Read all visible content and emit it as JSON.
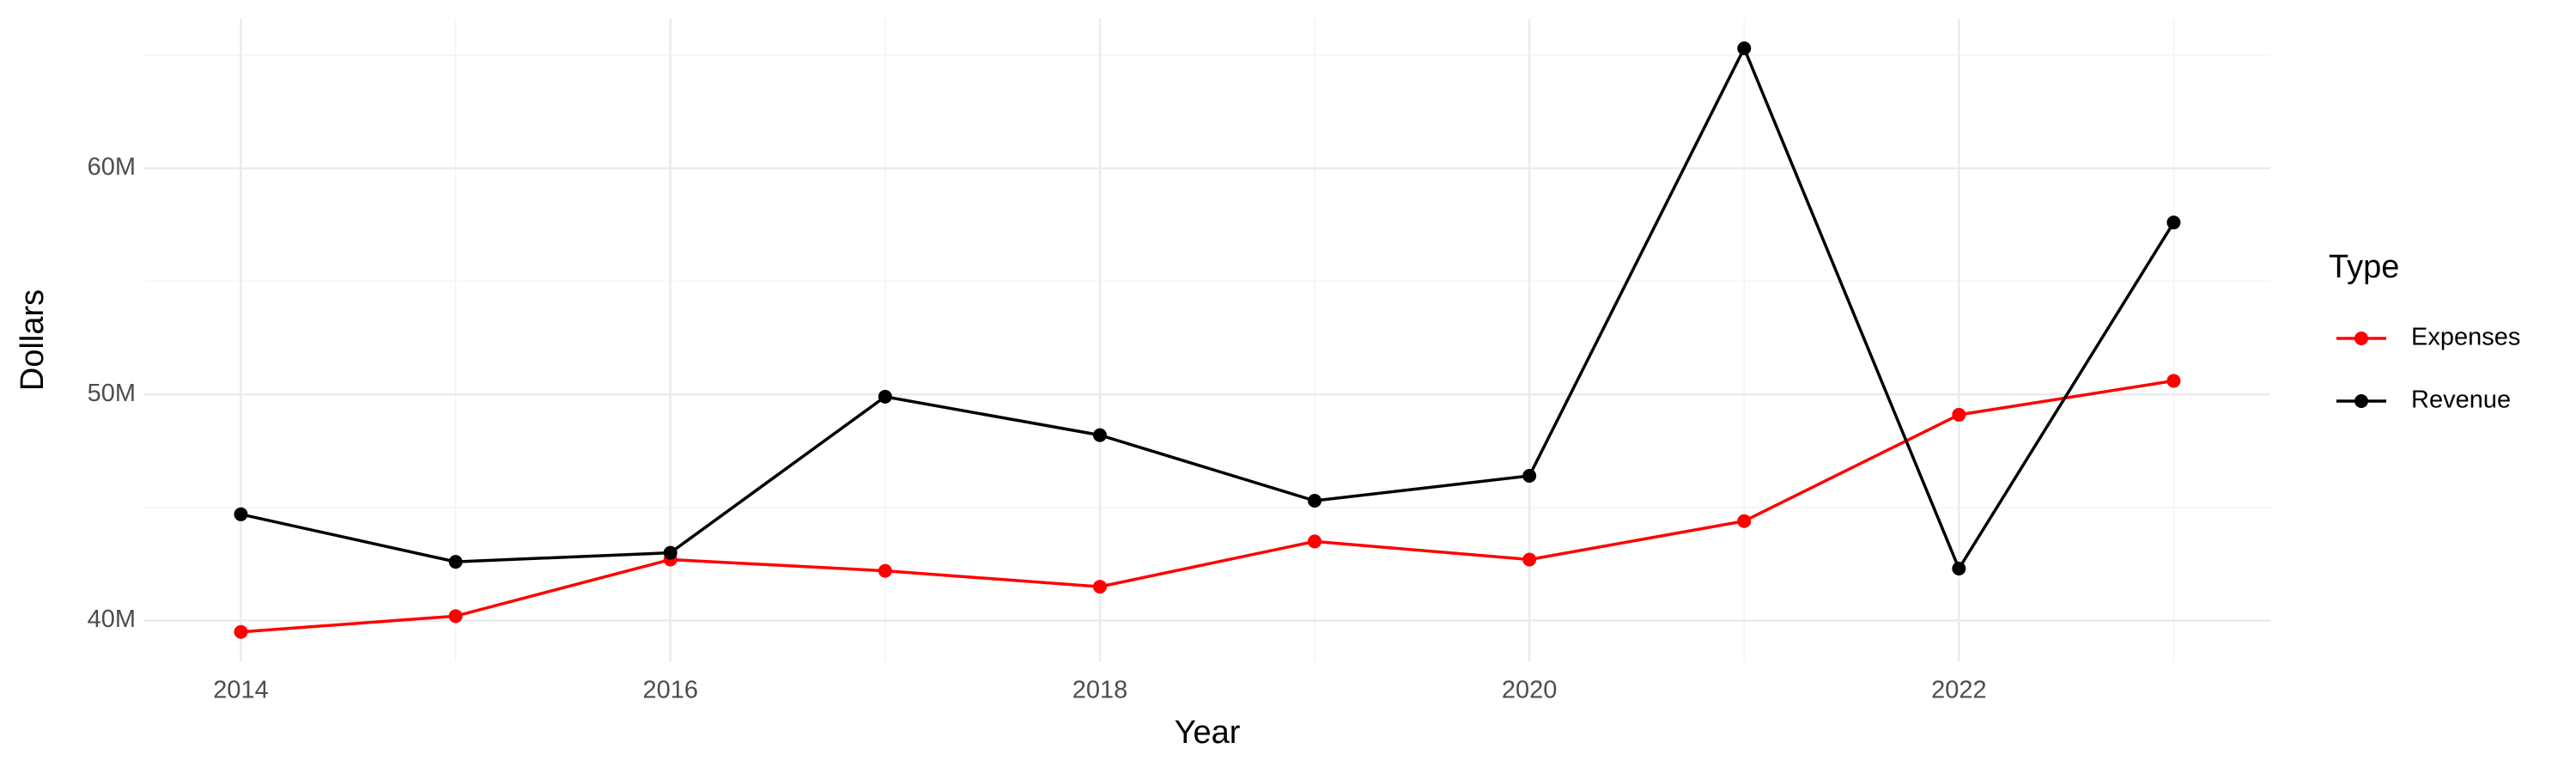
{
  "chart_data": {
    "type": "line",
    "x_label": "Year",
    "y_label": "Dollars",
    "legend_title": "Type",
    "legend": "right",
    "grid": true,
    "x": [
      2014,
      2015,
      2016,
      2017,
      2018,
      2019,
      2020,
      2021,
      2022,
      2023
    ],
    "series": [
      {
        "name": "Expenses",
        "color": "#ff0000",
        "values": [
          39500000,
          40200000,
          42700000,
          42200000,
          41500000,
          43500000,
          42700000,
          44400000,
          49100000,
          50600000
        ]
      },
      {
        "name": "Revenue",
        "color": "#000000",
        "values": [
          44700000,
          42600000,
          43000000,
          49900000,
          48200000,
          45300000,
          46400000,
          65300000,
          42300000,
          57600000
        ]
      }
    ],
    "xlim": [
      2013.55,
      2023.45
    ],
    "xticks": [
      2014,
      2016,
      2018,
      2020,
      2022
    ],
    "ylim": [
      38200000,
      66600000
    ],
    "yticks": [
      {
        "value": 40000000,
        "label": "40M"
      },
      {
        "value": 50000000,
        "label": "50M"
      },
      {
        "value": 60000000,
        "label": "60M"
      }
    ]
  }
}
